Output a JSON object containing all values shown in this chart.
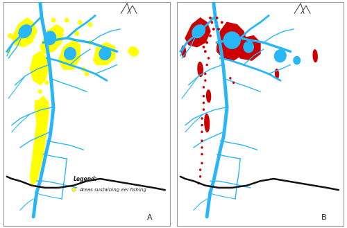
{
  "bg_color": "#ffffff",
  "border_color": "#999999",
  "river_color": "#29b6f6",
  "river_lw_main": 3.5,
  "river_lw_mid": 2.0,
  "river_lw_small": 1.0,
  "yellow_color": "#ffff00",
  "red_color": "#cc0000",
  "black_color": "#111111",
  "label_A": "A",
  "label_B": "B",
  "legend_title": "Legend:",
  "legend_text": "Areas sustaining eel fishing"
}
